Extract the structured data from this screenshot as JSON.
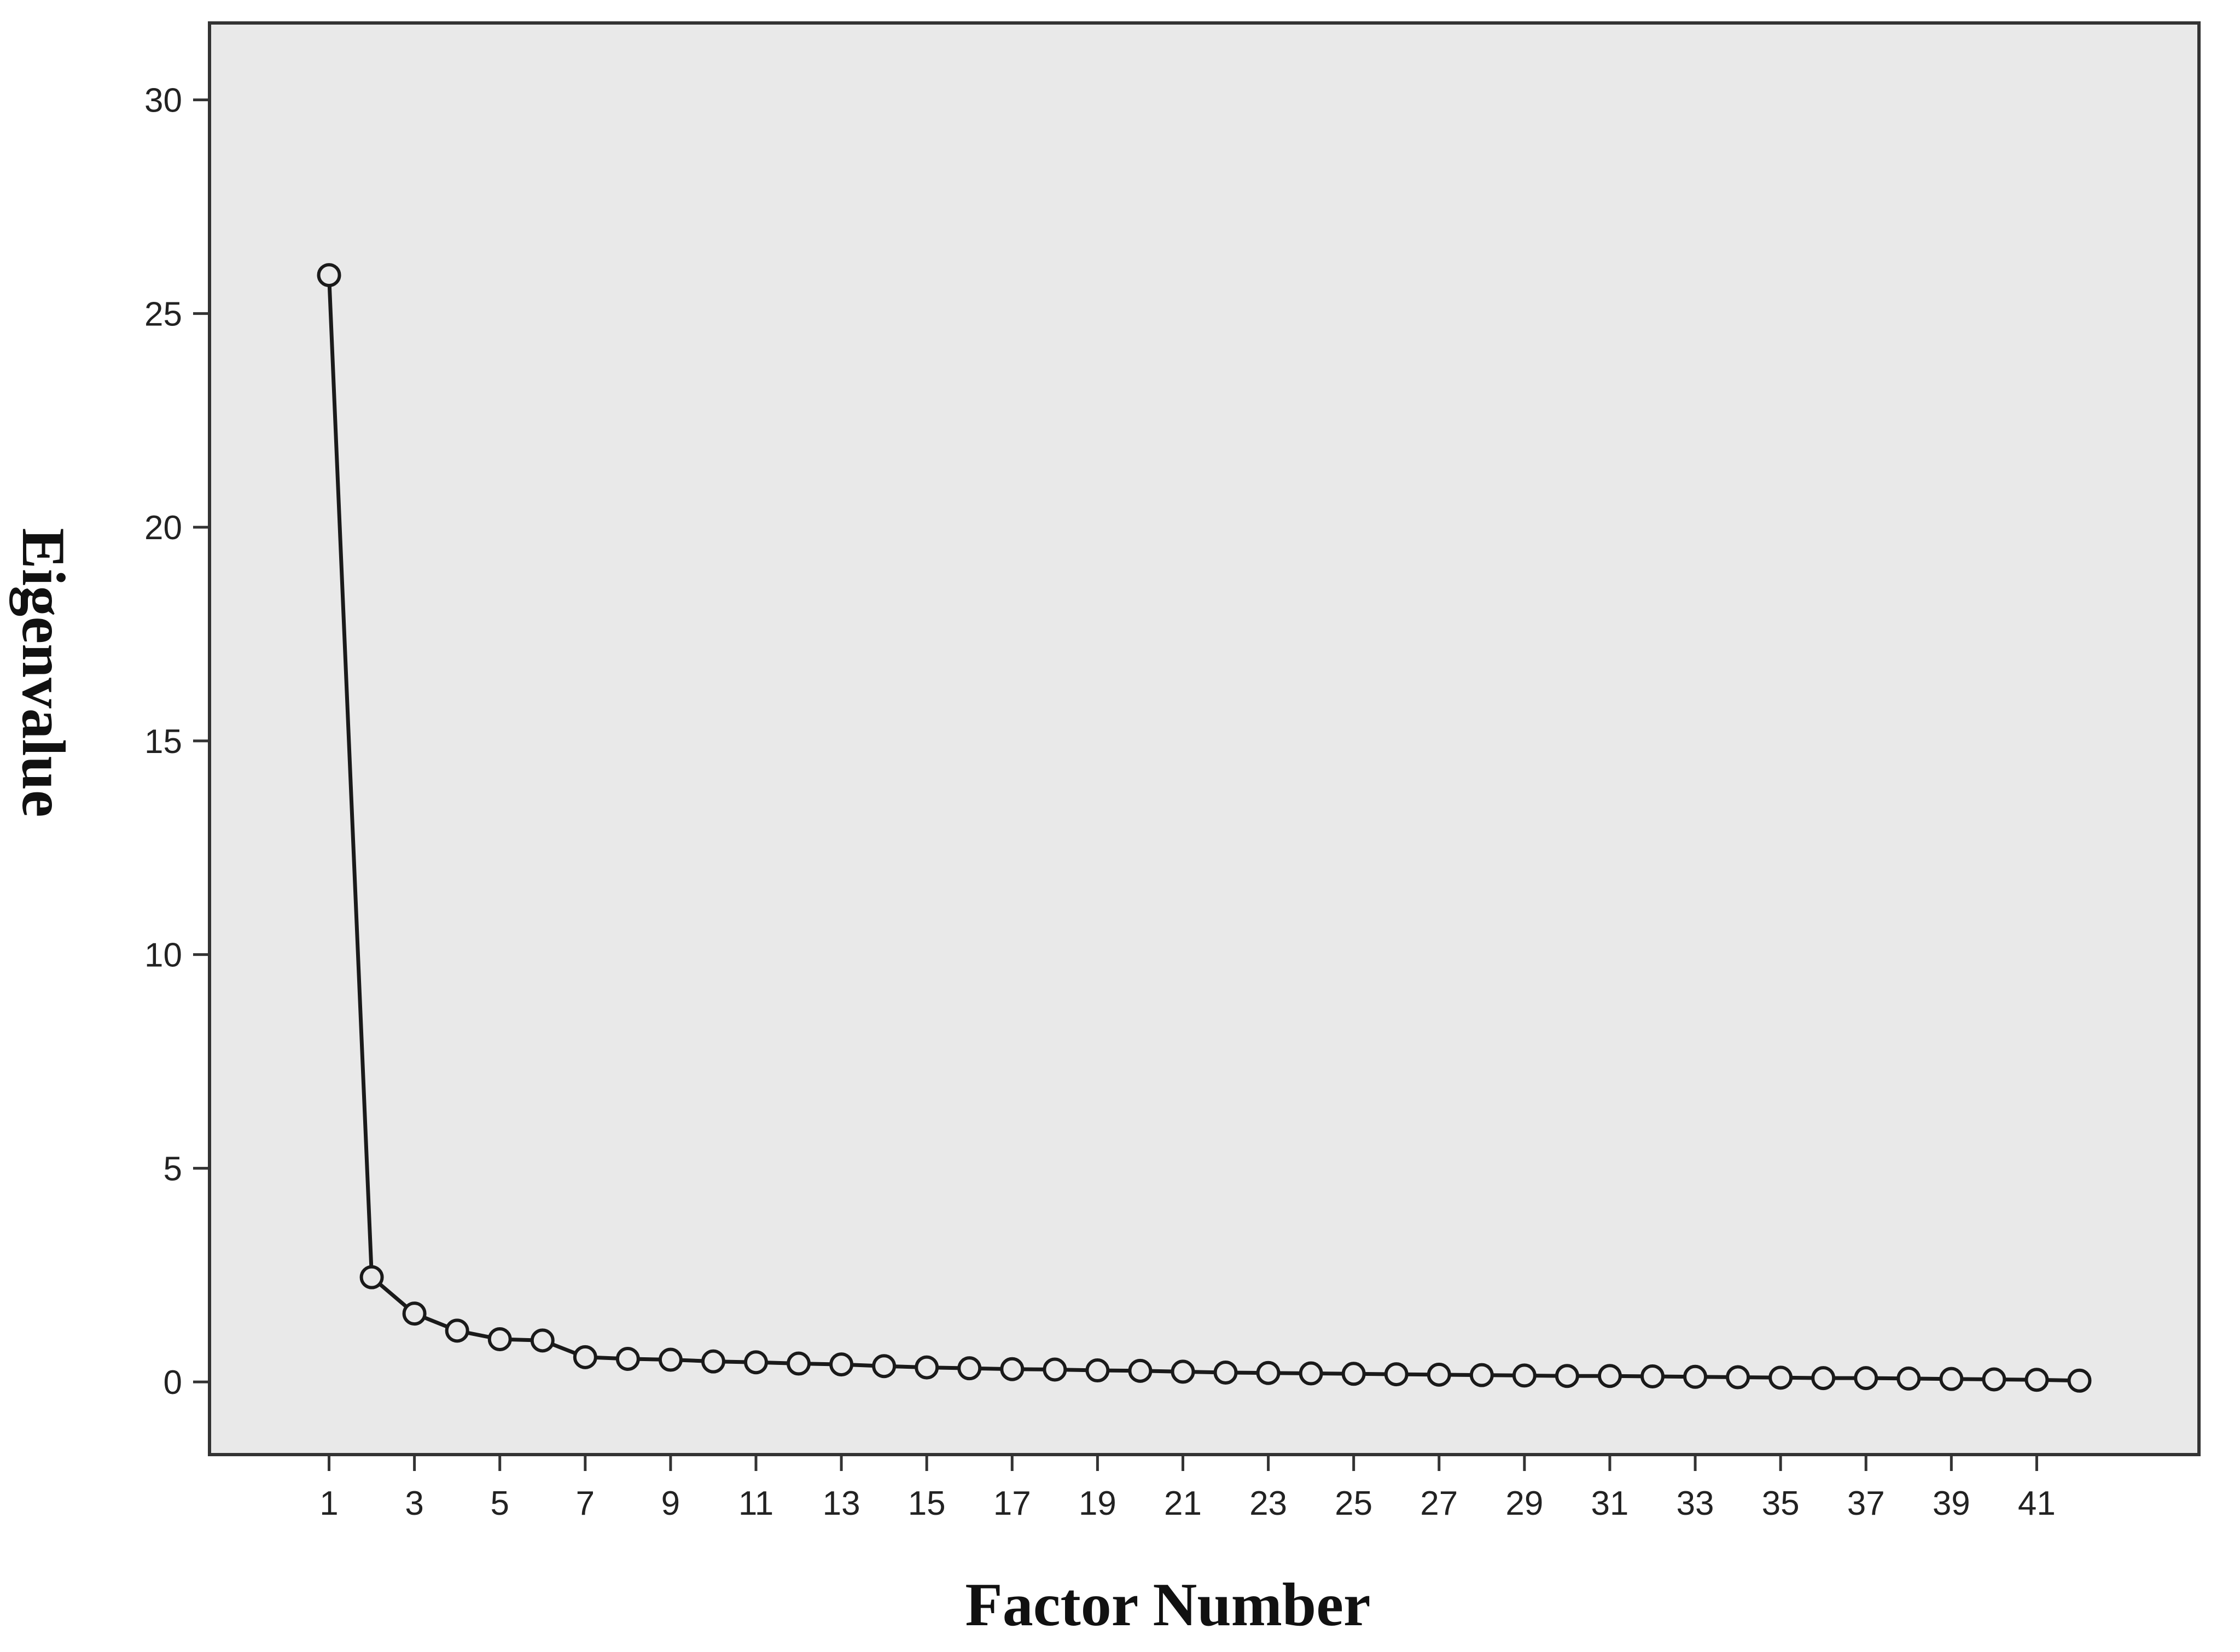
{
  "chart_data": {
    "type": "line",
    "title": "",
    "xlabel": "Factor Number",
    "ylabel": "Eigenvalue",
    "x": [
      1,
      2,
      3,
      4,
      5,
      6,
      7,
      8,
      9,
      10,
      11,
      12,
      13,
      14,
      15,
      16,
      17,
      18,
      19,
      20,
      21,
      22,
      23,
      24,
      25,
      26,
      27,
      28,
      29,
      30,
      31,
      32,
      33,
      34,
      35,
      36,
      37,
      38,
      39,
      40,
      41,
      42
    ],
    "series": [
      {
        "values": [
          25.9,
          2.45,
          1.6,
          1.2,
          1.0,
          0.97,
          0.58,
          0.54,
          0.52,
          0.48,
          0.46,
          0.43,
          0.41,
          0.37,
          0.34,
          0.32,
          0.3,
          0.29,
          0.27,
          0.26,
          0.24,
          0.22,
          0.21,
          0.2,
          0.19,
          0.18,
          0.17,
          0.16,
          0.15,
          0.14,
          0.14,
          0.13,
          0.12,
          0.11,
          0.1,
          0.09,
          0.09,
          0.08,
          0.07,
          0.06,
          0.05,
          0.03
        ]
      }
    ],
    "xticks": [
      "1",
      "3",
      "5",
      "7",
      "9",
      "11",
      "13",
      "15",
      "17",
      "19",
      "21",
      "23",
      "25",
      "27",
      "29",
      "31",
      "33",
      "35",
      "37",
      "39",
      "41"
    ],
    "yticks": [
      "0",
      "5",
      "10",
      "15",
      "20",
      "25",
      "30"
    ],
    "xlim": [
      -1.8,
      44.8
    ],
    "ylim": [
      -1.7,
      31.8
    ],
    "grid": false,
    "legend": "none",
    "colors": {
      "plot_background": "#e9e9e9",
      "frame": "#333333",
      "line": "#1a1a1a",
      "marker_stroke": "#1a1a1a",
      "marker_fill": "none"
    }
  }
}
